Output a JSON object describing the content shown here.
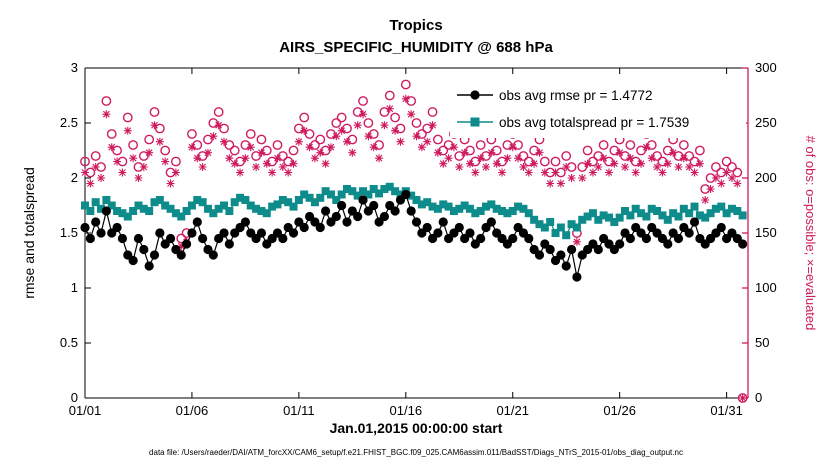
{
  "header": {
    "title": "Tropics",
    "subtitle": "AIRS_SPECIFIC_HUMIDITY @ 688 hPa"
  },
  "colors": {
    "rmse_color": "#000000",
    "spread_color": "#0e8c8c",
    "obs_color": "#cf1b5e",
    "background": "#ffffff"
  },
  "footer": {
    "caption": "data file: /Users/raeder/DAI/ATM_forcXX/CAM6_setup/f.e21.FHIST_BGC.f09_025.CAM6assim.011/BadSST/Diags_NTrS_2015-01/obs_diag_output.nc"
  },
  "chart_data": {
    "type": "line",
    "title": "Tropics",
    "subtitle": "AIRS_SPECIFIC_HUMIDITY @ 688 hPa",
    "xlabel": "Jan.01,2015 00:00:00 start",
    "ylabel": "rmse and totalspread",
    "y2label": "# of obs: o=possible; ×=evaluated",
    "xlim": [
      1,
      32
    ],
    "ylim": [
      0,
      3
    ],
    "y2lim": [
      0,
      300
    ],
    "x_start": 1,
    "x_step": 0.25,
    "x_ticks": [
      1,
      6,
      11,
      16,
      21,
      26,
      31
    ],
    "x_tick_labels": [
      "01/01",
      "01/06",
      "01/11",
      "01/16",
      "01/21",
      "01/26",
      "01/31"
    ],
    "y_ticks": [
      0,
      0.5,
      1,
      1.5,
      2,
      2.5,
      3
    ],
    "y_tick_labels": [
      "0",
      "0.5",
      "1",
      "1.5",
      "2",
      "2.5",
      "3"
    ],
    "y2_ticks": [
      0,
      50,
      100,
      150,
      200,
      250,
      300
    ],
    "y2_tick_labels": [
      "0",
      "50",
      "100",
      "150",
      "200",
      "250",
      "300"
    ],
    "grid": false,
    "legend_position": "top-center-inside",
    "series": [
      {
        "name": "obs avg rmse pr = 1.4772",
        "axis": "left",
        "marker": "filled-circle",
        "color": "#000000",
        "line": true,
        "values": [
          1.55,
          1.45,
          1.6,
          1.5,
          1.7,
          1.5,
          1.55,
          1.45,
          1.3,
          1.25,
          1.45,
          1.35,
          1.2,
          1.3,
          1.5,
          1.4,
          1.45,
          1.35,
          1.3,
          1.4,
          1.5,
          1.6,
          1.45,
          1.35,
          1.3,
          1.45,
          1.5,
          1.4,
          1.5,
          1.55,
          1.6,
          1.5,
          1.45,
          1.5,
          1.4,
          1.45,
          1.5,
          1.45,
          1.55,
          1.5,
          1.6,
          1.55,
          1.65,
          1.6,
          1.55,
          1.7,
          1.6,
          1.65,
          1.75,
          1.6,
          1.7,
          1.65,
          1.8,
          1.7,
          1.75,
          1.6,
          1.65,
          1.75,
          1.7,
          1.8,
          1.85,
          1.7,
          1.6,
          1.5,
          1.55,
          1.45,
          1.5,
          1.6,
          1.45,
          1.5,
          1.55,
          1.45,
          1.5,
          1.4,
          1.45,
          1.55,
          1.6,
          1.5,
          1.45,
          1.4,
          1.45,
          1.55,
          1.5,
          1.45,
          1.35,
          1.3,
          1.4,
          1.35,
          1.25,
          1.3,
          1.2,
          1.35,
          1.1,
          1.3,
          1.35,
          1.4,
          1.35,
          1.45,
          1.4,
          1.35,
          1.4,
          1.5,
          1.45,
          1.55,
          1.5,
          1.45,
          1.55,
          1.5,
          1.45,
          1.4,
          1.5,
          1.45,
          1.55,
          1.5,
          1.6,
          1.45,
          1.4,
          1.45,
          1.5,
          1.55,
          1.45,
          1.5,
          1.45,
          1.4
        ]
      },
      {
        "name": "obs avg totalspread pr = 1.7539",
        "axis": "left",
        "marker": "filled-square",
        "color": "#0e8c8c",
        "line": true,
        "values": [
          1.75,
          1.7,
          1.78,
          1.72,
          1.8,
          1.75,
          1.7,
          1.68,
          1.65,
          1.7,
          1.75,
          1.72,
          1.7,
          1.78,
          1.8,
          1.75,
          1.72,
          1.68,
          1.65,
          1.7,
          1.75,
          1.8,
          1.78,
          1.72,
          1.68,
          1.72,
          1.75,
          1.7,
          1.78,
          1.82,
          1.8,
          1.75,
          1.72,
          1.7,
          1.68,
          1.74,
          1.76,
          1.8,
          1.78,
          1.74,
          1.8,
          1.85,
          1.82,
          1.78,
          1.82,
          1.88,
          1.85,
          1.8,
          1.85,
          1.9,
          1.88,
          1.84,
          1.88,
          1.85,
          1.9,
          1.86,
          1.9,
          1.92,
          1.88,
          1.85,
          1.88,
          1.84,
          1.8,
          1.76,
          1.78,
          1.74,
          1.72,
          1.76,
          1.74,
          1.7,
          1.72,
          1.75,
          1.72,
          1.68,
          1.7,
          1.74,
          1.76,
          1.72,
          1.7,
          1.68,
          1.7,
          1.74,
          1.72,
          1.68,
          1.62,
          1.58,
          1.55,
          1.6,
          1.5,
          1.55,
          1.48,
          1.58,
          1.55,
          1.62,
          1.65,
          1.68,
          1.62,
          1.66,
          1.64,
          1.6,
          1.64,
          1.7,
          1.66,
          1.72,
          1.68,
          1.65,
          1.72,
          1.7,
          1.66,
          1.62,
          1.68,
          1.65,
          1.72,
          1.68,
          1.74,
          1.66,
          1.64,
          1.68,
          1.72,
          1.74,
          1.68,
          1.72,
          1.7,
          1.66
        ]
      },
      {
        "name": "possible",
        "axis": "right",
        "marker": "open-circle",
        "color": "#cf1b5e",
        "line": false,
        "values": [
          215,
          205,
          220,
          210,
          270,
          240,
          225,
          215,
          255,
          230,
          210,
          220,
          235,
          260,
          245,
          225,
          205,
          215,
          145,
          150,
          240,
          230,
          220,
          235,
          250,
          260,
          245,
          230,
          225,
          215,
          230,
          240,
          220,
          235,
          225,
          215,
          230,
          220,
          215,
          225,
          245,
          255,
          240,
          230,
          235,
          225,
          240,
          250,
          255,
          245,
          235,
          260,
          270,
          250,
          240,
          230,
          260,
          275,
          255,
          245,
          285,
          270,
          250,
          240,
          245,
          260,
          235,
          225,
          230,
          240,
          220,
          235,
          225,
          215,
          230,
          220,
          235,
          225,
          215,
          230,
          240,
          230,
          220,
          215,
          225,
          235,
          215,
          205,
          215,
          205,
          220,
          210,
          150,
          210,
          225,
          215,
          220,
          230,
          215,
          225,
          235,
          220,
          230,
          215,
          225,
          240,
          230,
          220,
          215,
          225,
          235,
          220,
          230,
          220,
          215,
          225,
          190,
          200,
          210,
          205,
          215,
          210,
          205,
          0
        ]
      },
      {
        "name": "evaluated",
        "axis": "right",
        "marker": "asterisk",
        "color": "#cf1b5e",
        "line": false,
        "values": [
          205,
          195,
          210,
          200,
          258,
          228,
          215,
          205,
          243,
          218,
          200,
          210,
          223,
          248,
          233,
          215,
          195,
          205,
          138,
          142,
          228,
          218,
          210,
          223,
          238,
          248,
          233,
          218,
          213,
          205,
          218,
          228,
          210,
          223,
          213,
          205,
          218,
          210,
          205,
          213,
          233,
          243,
          228,
          218,
          223,
          213,
          228,
          238,
          243,
          233,
          223,
          248,
          258,
          238,
          228,
          218,
          248,
          263,
          243,
          233,
          272,
          258,
          238,
          228,
          233,
          248,
          223,
          213,
          218,
          228,
          210,
          223,
          213,
          205,
          218,
          210,
          223,
          213,
          205,
          218,
          228,
          218,
          210,
          205,
          213,
          223,
          205,
          195,
          205,
          195,
          210,
          200,
          142,
          200,
          213,
          205,
          210,
          218,
          205,
          213,
          223,
          210,
          218,
          205,
          213,
          228,
          218,
          210,
          205,
          213,
          223,
          210,
          218,
          210,
          205,
          213,
          180,
          190,
          200,
          195,
          205,
          200,
          195,
          0
        ]
      }
    ]
  }
}
